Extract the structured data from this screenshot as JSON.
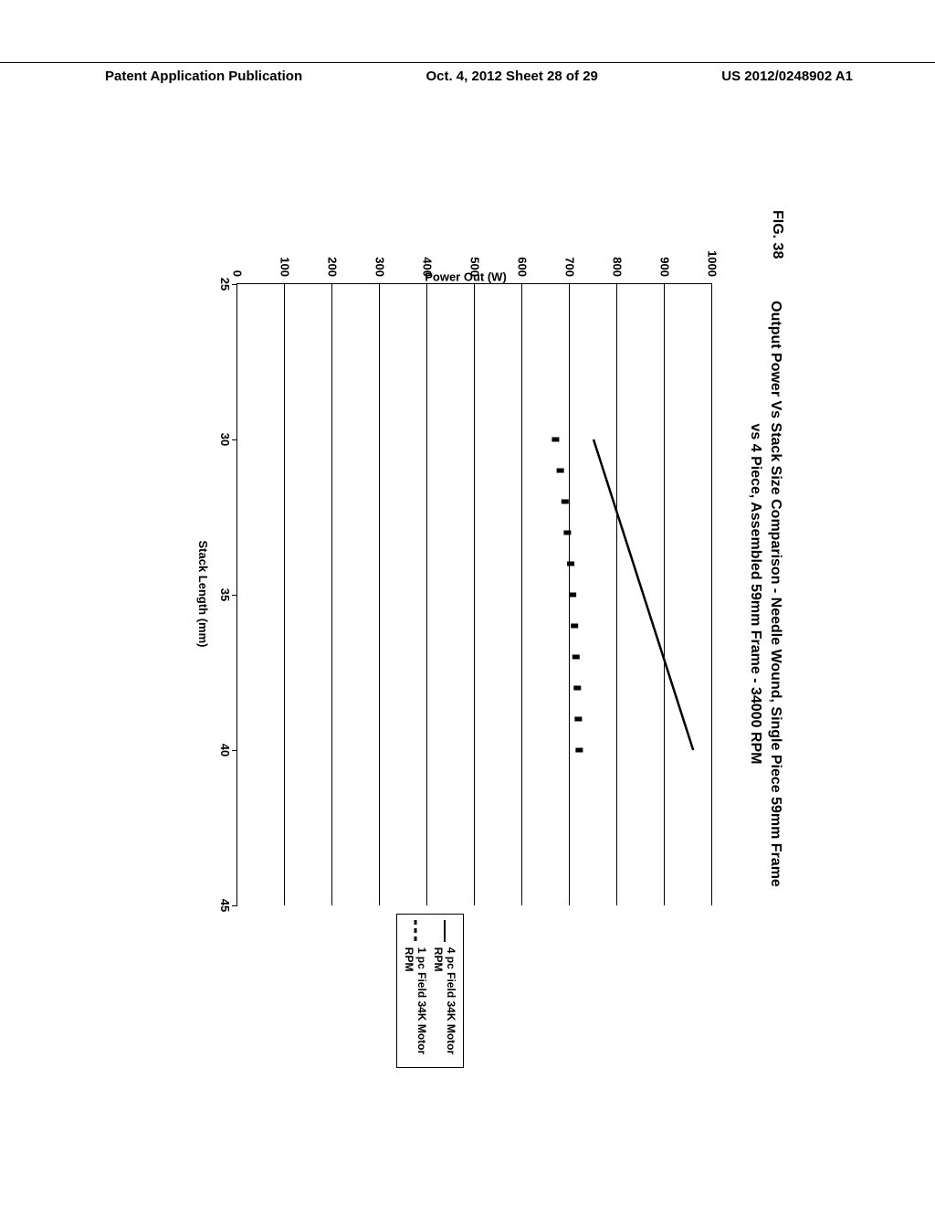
{
  "header": {
    "left": "Patent Application Publication",
    "center": "Oct. 4, 2012  Sheet 28 of 29",
    "right": "US 2012/0248902 A1"
  },
  "figure": {
    "label": "FIG. 38",
    "title_line1": "Output Power Vs Stack Size Comparison - Needle Wound, Single Piece 59mm Frame",
    "title_line2": "vs 4 Piece, Assembled 59mm Frame - 34000 RPM",
    "xlabel": "Stack Length (mm)",
    "ylabel": "Power Out (W)",
    "xlim": [
      25,
      45
    ],
    "ylim": [
      0,
      1000
    ],
    "xticks": [
      25,
      30,
      35,
      40,
      45
    ],
    "yticks": [
      0,
      100,
      200,
      300,
      400,
      500,
      600,
      700,
      800,
      900,
      1000
    ],
    "grid_color": "#000000",
    "background_color": "#ffffff",
    "line_color": "#000000",
    "label_fontsize": 13,
    "title_fontsize": 16,
    "series": {
      "four_pc": {
        "label": "4 pc Field 34K Motor RPM",
        "style": "solid",
        "width": 2.5,
        "color": "#000000",
        "points": [
          [
            30,
            750
          ],
          [
            40,
            960
          ]
        ]
      },
      "one_pc": {
        "label": "1 pc Field 34K Motor RPM",
        "style": "dashed",
        "width": 3,
        "color": "#000000",
        "points": [
          [
            30,
            670
          ],
          [
            31,
            680
          ],
          [
            32,
            690
          ],
          [
            33,
            695
          ],
          [
            34,
            702
          ],
          [
            35,
            706
          ],
          [
            36,
            710
          ],
          [
            37,
            713
          ],
          [
            38,
            716
          ],
          [
            39,
            718
          ],
          [
            40,
            720
          ]
        ]
      }
    },
    "legend_position": "right"
  }
}
